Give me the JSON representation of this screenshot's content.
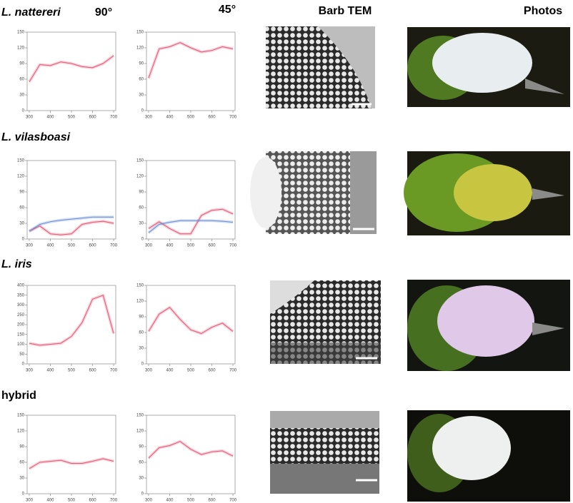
{
  "column_headers": [
    "90°",
    "45°",
    "Barb TEM",
    "Photos"
  ],
  "row_labels": [
    "L. nattereri",
    "L. vilasboasi",
    "L. iris",
    "hybrid"
  ],
  "chart_data": [
    {
      "type": "line",
      "x": [
        300,
        350,
        400,
        450,
        500,
        550,
        600,
        650,
        700
      ],
      "series": [
        {
          "color": "#e05a78",
          "values": [
            55,
            88,
            86,
            93,
            90,
            84,
            82,
            90,
            105
          ]
        }
      ],
      "xlim": [
        290,
        710
      ],
      "xticks": [
        300,
        400,
        500,
        600,
        700
      ],
      "ylim": [
        0,
        150
      ],
      "yticks": [
        0,
        30,
        60,
        90,
        120,
        150
      ]
    },
    {
      "type": "line",
      "x": [
        300,
        350,
        400,
        450,
        500,
        550,
        600,
        650,
        700
      ],
      "series": [
        {
          "color": "#e05a78",
          "values": [
            62,
            118,
            122,
            130,
            120,
            112,
            115,
            122,
            118
          ]
        }
      ],
      "xlim": [
        290,
        710
      ],
      "xticks": [
        300,
        400,
        500,
        600,
        700
      ],
      "ylim": [
        0,
        150
      ],
      "yticks": [
        0,
        30,
        60,
        90,
        120,
        150
      ]
    },
    {
      "type": "line",
      "x": [
        300,
        350,
        400,
        450,
        500,
        550,
        600,
        650,
        700
      ],
      "series": [
        {
          "color": "#e05a78",
          "values": [
            15,
            25,
            10,
            8,
            10,
            28,
            32,
            34,
            30
          ]
        },
        {
          "color": "#6a8fd0",
          "values": [
            15,
            28,
            33,
            36,
            38,
            40,
            42,
            42,
            42
          ]
        }
      ],
      "xlim": [
        290,
        710
      ],
      "xticks": [
        300,
        400,
        500,
        600,
        700
      ],
      "ylim": [
        0,
        150
      ],
      "yticks": [
        0,
        30,
        60,
        90,
        120,
        150
      ]
    },
    {
      "type": "line",
      "x": [
        300,
        350,
        400,
        450,
        500,
        550,
        600,
        650,
        700
      ],
      "series": [
        {
          "color": "#e05a78",
          "values": [
            20,
            33,
            20,
            10,
            10,
            45,
            55,
            57,
            48
          ]
        },
        {
          "color": "#6a8fd0",
          "values": [
            12,
            28,
            32,
            35,
            35,
            35,
            35,
            34,
            32
          ]
        }
      ],
      "xlim": [
        290,
        710
      ],
      "xticks": [
        300,
        400,
        500,
        600,
        700
      ],
      "ylim": [
        0,
        150
      ],
      "yticks": [
        0,
        30,
        60,
        90,
        120,
        150
      ]
    },
    {
      "type": "line",
      "x": [
        300,
        350,
        400,
        450,
        500,
        550,
        600,
        650,
        700
      ],
      "series": [
        {
          "color": "#e05a78",
          "values": [
            105,
            95,
            100,
            105,
            140,
            210,
            330,
            350,
            155
          ]
        }
      ],
      "xlim": [
        290,
        710
      ],
      "xticks": [
        300,
        400,
        500,
        600,
        700
      ],
      "ylim": [
        0,
        400
      ],
      "yticks": [
        0,
        50,
        100,
        150,
        200,
        250,
        300,
        350,
        400
      ]
    },
    {
      "type": "line",
      "x": [
        300,
        350,
        400,
        450,
        500,
        550,
        600,
        650,
        700
      ],
      "series": [
        {
          "color": "#e05a78",
          "values": [
            62,
            95,
            108,
            85,
            65,
            58,
            70,
            78,
            62
          ]
        }
      ],
      "xlim": [
        290,
        710
      ],
      "xticks": [
        300,
        400,
        500,
        600,
        700
      ],
      "ylim": [
        0,
        150
      ],
      "yticks": [
        0,
        30,
        60,
        90,
        120,
        150
      ]
    },
    {
      "type": "line",
      "x": [
        300,
        350,
        400,
        450,
        500,
        550,
        600,
        650,
        700
      ],
      "series": [
        {
          "color": "#e05a78",
          "values": [
            48,
            60,
            62,
            64,
            58,
            58,
            62,
            67,
            62
          ]
        }
      ],
      "xlim": [
        290,
        710
      ],
      "xticks": [
        300,
        400,
        500,
        600,
        700
      ],
      "ylim": [
        0,
        150
      ],
      "yticks": [
        0,
        30,
        60,
        90,
        120,
        150
      ]
    },
    {
      "type": "line",
      "x": [
        300,
        350,
        400,
        450,
        500,
        550,
        600,
        650,
        700
      ],
      "series": [
        {
          "color": "#e05a78",
          "values": [
            68,
            88,
            92,
            100,
            85,
            75,
            80,
            82,
            72
          ]
        }
      ],
      "xlim": [
        290,
        710
      ],
      "xticks": [
        300,
        400,
        500,
        600,
        700
      ],
      "ylim": [
        0,
        150
      ],
      "yticks": [
        0,
        30,
        60,
        90,
        120,
        150
      ]
    }
  ]
}
